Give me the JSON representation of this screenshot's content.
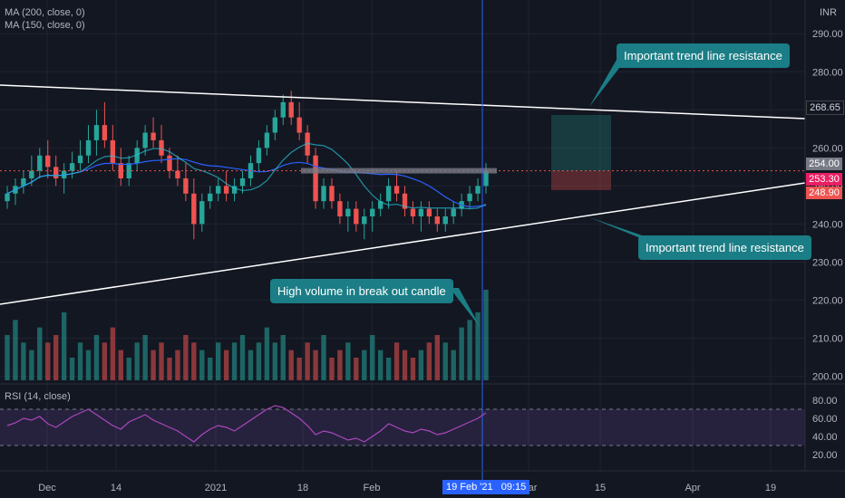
{
  "chart_data": {
    "type": "candlestick",
    "currency": "INR",
    "indicators": [
      "MA (200, close, 0)",
      "MA (150, close, 0)"
    ],
    "rsi_label": "RSI (14, close)",
    "price_axis": {
      "range": [
        198,
        296
      ],
      "ticks": [
        "290.00",
        "280.00",
        "270.00",
        "260.00",
        "250.00",
        "240.00",
        "230.00",
        "220.00",
        "210.00",
        "200.00"
      ]
    },
    "rsi_axis": {
      "ticks": [
        "80.00",
        "60.00",
        "40.00",
        "20.00"
      ],
      "overbought": 70,
      "oversold": 30
    },
    "x_ticks": [
      "Dec",
      "14",
      "2021",
      "18",
      "Feb",
      "Mar",
      "15",
      "Apr",
      "19"
    ],
    "current_time_label": "19 Feb '21",
    "current_time_clock": "09:15",
    "price_tags": [
      {
        "value": "268.65",
        "kind": "trendline"
      },
      {
        "value": "254.00",
        "kind": "last"
      },
      {
        "value": "253.30",
        "kind": "ma"
      },
      {
        "value": "248.90",
        "kind": "stop"
      }
    ],
    "annotations": [
      "Important trend line resistance",
      "Important trend line resistance",
      "High volume in break out candle"
    ],
    "candles": [
      [
        246,
        250,
        244,
        248
      ],
      [
        248,
        252,
        245,
        250
      ],
      [
        250,
        254,
        248,
        252
      ],
      [
        252,
        258,
        250,
        254
      ],
      [
        254,
        260,
        252,
        258
      ],
      [
        258,
        262,
        252,
        255
      ],
      [
        255,
        258,
        250,
        252
      ],
      [
        252,
        256,
        248,
        254
      ],
      [
        254,
        259,
        252,
        256
      ],
      [
        256,
        262,
        254,
        258
      ],
      [
        258,
        266,
        256,
        262
      ],
      [
        262,
        270,
        258,
        266
      ],
      [
        266,
        272,
        260,
        262
      ],
      [
        262,
        266,
        254,
        256
      ],
      [
        256,
        260,
        250,
        252
      ],
      [
        252,
        258,
        250,
        256
      ],
      [
        256,
        262,
        254,
        260
      ],
      [
        260,
        266,
        258,
        264
      ],
      [
        264,
        268,
        260,
        262
      ],
      [
        262,
        266,
        256,
        258
      ],
      [
        258,
        260,
        252,
        254
      ],
      [
        254,
        258,
        250,
        252
      ],
      [
        252,
        256,
        246,
        248
      ],
      [
        248,
        252,
        236,
        240
      ],
      [
        240,
        248,
        238,
        246
      ],
      [
        246,
        250,
        244,
        248
      ],
      [
        248,
        252,
        246,
        250
      ],
      [
        250,
        254,
        246,
        248
      ],
      [
        248,
        252,
        246,
        250
      ],
      [
        250,
        254,
        248,
        252
      ],
      [
        252,
        258,
        250,
        256
      ],
      [
        256,
        262,
        254,
        260
      ],
      [
        260,
        266,
        258,
        264
      ],
      [
        264,
        270,
        262,
        268
      ],
      [
        268,
        274,
        266,
        272
      ],
      [
        272,
        275,
        266,
        268
      ],
      [
        268,
        272,
        262,
        264
      ],
      [
        264,
        266,
        256,
        258
      ],
      [
        258,
        260,
        244,
        246
      ],
      [
        246,
        252,
        244,
        250
      ],
      [
        250,
        252,
        244,
        246
      ],
      [
        246,
        248,
        240,
        242
      ],
      [
        242,
        246,
        238,
        244
      ],
      [
        244,
        246,
        238,
        240
      ],
      [
        240,
        244,
        236,
        242
      ],
      [
        242,
        246,
        238,
        244
      ],
      [
        244,
        248,
        242,
        246
      ],
      [
        246,
        252,
        244,
        250
      ],
      [
        250,
        254,
        246,
        248
      ],
      [
        248,
        250,
        242,
        244
      ],
      [
        244,
        246,
        240,
        242
      ],
      [
        242,
        246,
        238,
        244
      ],
      [
        244,
        246,
        240,
        242
      ],
      [
        242,
        244,
        238,
        240
      ],
      [
        240,
        244,
        238,
        242
      ],
      [
        242,
        246,
        240,
        244
      ],
      [
        244,
        248,
        242,
        246
      ],
      [
        246,
        250,
        244,
        248
      ],
      [
        248,
        252,
        246,
        250
      ],
      [
        250,
        256,
        248,
        254
      ]
    ],
    "volume": [
      6,
      8,
      5,
      4,
      7,
      5,
      6,
      9,
      3,
      5,
      4,
      6,
      5,
      7,
      4,
      3,
      5,
      6,
      4,
      5,
      3,
      4,
      6,
      5,
      4,
      3,
      5,
      4,
      5,
      6,
      4,
      5,
      7,
      5,
      6,
      4,
      3,
      5,
      4,
      6,
      3,
      4,
      5,
      3,
      4,
      6,
      4,
      3,
      5,
      4,
      3,
      4,
      5,
      6,
      5,
      4,
      7,
      8,
      9,
      12
    ],
    "rsi": [
      52,
      55,
      60,
      58,
      62,
      54,
      50,
      56,
      62,
      66,
      70,
      64,
      58,
      52,
      48,
      56,
      60,
      64,
      58,
      54,
      50,
      46,
      40,
      34,
      42,
      48,
      52,
      50,
      46,
      52,
      58,
      64,
      70,
      74,
      72,
      66,
      60,
      52,
      42,
      46,
      44,
      40,
      36,
      38,
      34,
      40,
      46,
      54,
      50,
      46,
      44,
      48,
      46,
      42,
      44,
      48,
      52,
      56,
      60,
      66
    ]
  }
}
